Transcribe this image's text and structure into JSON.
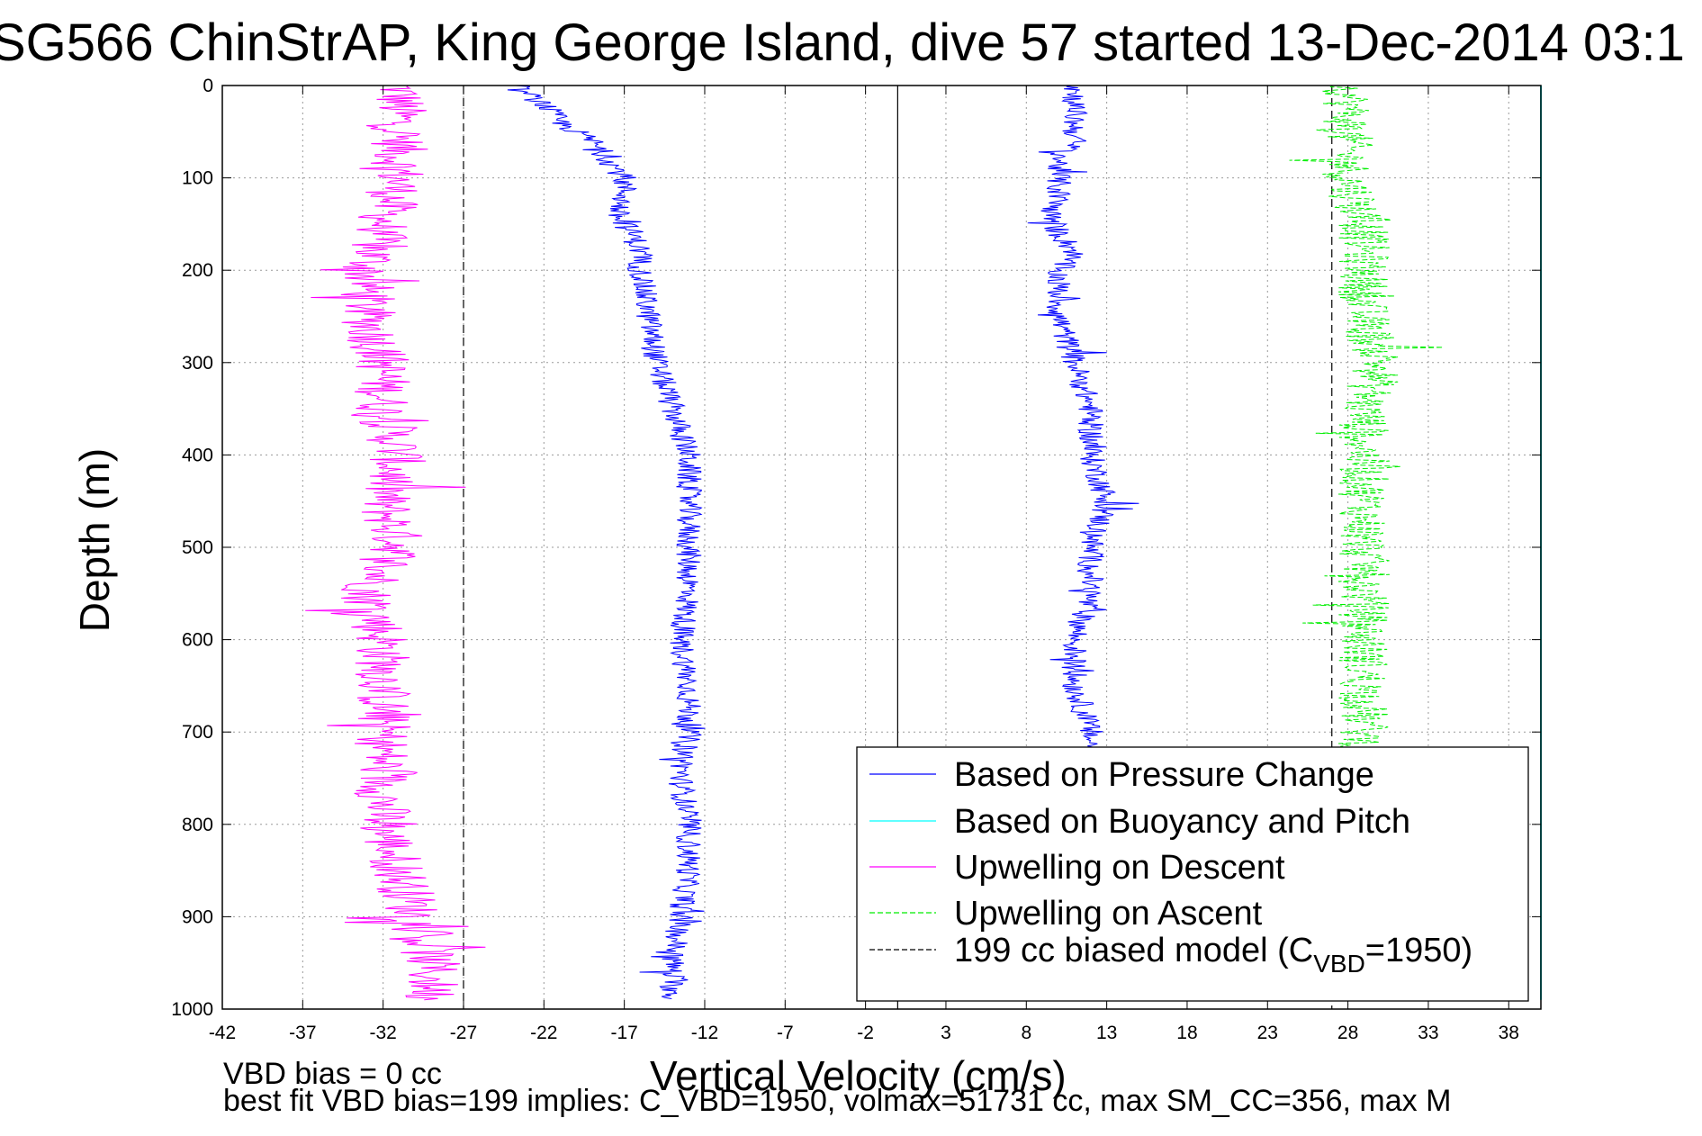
{
  "chart_data": {
    "type": "line",
    "title": "SG566 ChinStrAP, King George Island, dive 57 started 13-Dec-2014 03:1",
    "xlabel": "Vertical Velocity (cm/s)",
    "ylabel": "Depth (m)",
    "xlim": [
      -42,
      40
    ],
    "ylim": [
      1000,
      0
    ],
    "xticks": [
      "-42",
      "-37",
      "-32",
      "-27",
      "-22",
      "-17",
      "-12",
      "-7",
      "-2",
      "3",
      "8",
      "13",
      "18",
      "23",
      "28",
      "33",
      "38"
    ],
    "yticks": [
      "0",
      "100",
      "200",
      "300",
      "400",
      "500",
      "600",
      "700",
      "800",
      "900",
      "1000"
    ],
    "grid": true,
    "legend_position": "lower-right",
    "reference_lines": {
      "zero_solid_x": 0,
      "model_dashed_x": [
        -27,
        27
      ]
    },
    "series": [
      {
        "name": "Based on Pressure Change",
        "color": "#0000ff",
        "style": "solid",
        "depth": [
          0,
          20,
          40,
          60,
          80,
          100,
          120,
          140,
          160,
          180,
          200,
          250,
          300,
          350,
          400,
          450,
          500,
          550,
          600,
          650,
          700,
          750,
          800,
          850,
          900,
          950,
          990
        ],
        "velocity_descent": [
          -24,
          -22,
          -21,
          -19,
          -18,
          -17,
          -17,
          -17.5,
          -16.5,
          -16,
          -16,
          -15.5,
          -15,
          -14,
          -13,
          -13,
          -13,
          -13,
          -13.5,
          -13,
          -13,
          -13.5,
          -13,
          -13,
          -13.5,
          -14,
          -14
        ],
        "velocity_ascent": [
          11,
          11,
          11,
          11,
          10,
          10,
          10,
          9.5,
          10,
          11,
          10,
          10,
          11,
          12,
          12,
          13,
          12,
          12,
          11,
          11,
          12,
          12,
          12,
          12,
          12,
          12,
          12
        ]
      },
      {
        "name": "Based on Buoyancy and Pitch",
        "color": "#00ffff",
        "style": "solid",
        "depth": [
          0,
          990
        ],
        "velocity": [
          40,
          40
        ]
      },
      {
        "name": "Upwelling on Descent",
        "color": "#ff00ff",
        "style": "solid",
        "depth": [
          0,
          50,
          100,
          150,
          200,
          250,
          300,
          350,
          400,
          450,
          500,
          550,
          600,
          650,
          700,
          750,
          800,
          850,
          900,
          950,
          990
        ],
        "velocity": [
          -31,
          -31,
          -31,
          -32,
          -33,
          -33,
          -32,
          -32,
          -31,
          -32,
          -31,
          -33,
          -32,
          -32,
          -32,
          -32,
          -32,
          -31,
          -30,
          -29,
          -29
        ]
      },
      {
        "name": "Upwelling on Ascent",
        "color": "#00ee00",
        "style": "dashed",
        "depth": [
          0,
          50,
          100,
          150,
          200,
          250,
          300,
          350,
          400,
          450,
          500,
          550,
          600,
          650,
          700,
          750,
          800,
          850,
          900,
          950,
          990
        ],
        "velocity": [
          28,
          28,
          28,
          29,
          29,
          29,
          30,
          29,
          29,
          29,
          29,
          29,
          29,
          29,
          29,
          29,
          29,
          29,
          29,
          29,
          29
        ]
      },
      {
        "name": "199 cc biased model (C_VBD=1950)",
        "color": "#000000",
        "style": "dashed",
        "depth": [
          0,
          1000
        ],
        "velocity": [
          -27,
          -27
        ]
      }
    ],
    "legend": [
      {
        "label": "Based on Pressure Change",
        "color": "#0000ff",
        "style": "solid"
      },
      {
        "label": "Based on Buoyancy and Pitch",
        "color": "#00ffff",
        "style": "solid"
      },
      {
        "label": "Upwelling on Descent",
        "color": "#ff00ff",
        "style": "solid"
      },
      {
        "label": "Upwelling on Ascent",
        "color": "#00ee00",
        "style": "dashed"
      },
      {
        "label_prefix": "199 cc biased model (C",
        "label_sub": "VBD",
        "label_suffix": "=1950)",
        "color": "#000000",
        "style": "dashed"
      }
    ],
    "annotations": [
      "VBD bias = 0 cc",
      "best fit VBD bias=199 implies: C_VBD=1950, volmax=51731 cc, max SM_CC=356, max M"
    ]
  }
}
